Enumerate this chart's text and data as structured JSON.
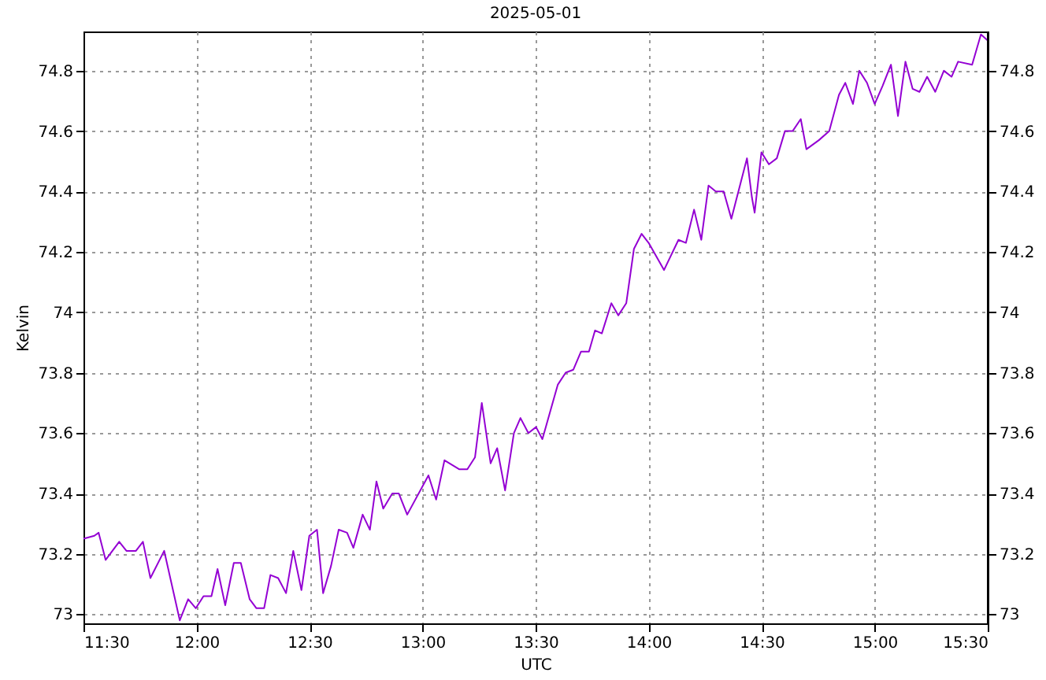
{
  "chart_data": {
    "type": "line",
    "title": "2025-05-01",
    "xlabel": "UTC",
    "ylabel": "Kelvin",
    "x": [
      11.5,
      11.548,
      11.567,
      11.598,
      11.658,
      11.69,
      11.732,
      11.763,
      11.796,
      11.857,
      11.926,
      11.963,
      11.997,
      12.031,
      12.066,
      12.093,
      12.127,
      12.165,
      12.196,
      12.235,
      12.265,
      12.299,
      12.327,
      12.361,
      12.396,
      12.428,
      12.464,
      12.499,
      12.533,
      12.56,
      12.595,
      12.629,
      12.666,
      12.694,
      12.735,
      12.767,
      12.796,
      12.826,
      12.866,
      12.895,
      12.932,
      13.026,
      13.06,
      13.097,
      13.163,
      13.198,
      13.232,
      13.262,
      13.301,
      13.33,
      13.365,
      13.404,
      13.433,
      13.468,
      13.502,
      13.53,
      13.598,
      13.633,
      13.667,
      13.701,
      13.736,
      13.763,
      13.793,
      13.835,
      13.866,
      13.901,
      13.935,
      13.969,
      14.0,
      14.068,
      14.132,
      14.165,
      14.201,
      14.233,
      14.265,
      14.297,
      14.332,
      14.366,
      14.435,
      14.457,
      14.469,
      14.499,
      14.532,
      14.567,
      14.603,
      14.637,
      14.673,
      14.698,
      14.753,
      14.799,
      14.842,
      14.87,
      14.904,
      14.932,
      14.966,
      15.0,
      15.035,
      15.072,
      15.103,
      15.136,
      15.168,
      15.198,
      15.232,
      15.268,
      15.306,
      15.34,
      15.369,
      15.431,
      15.47,
      15.5
    ],
    "series": [
      {
        "color": "#9400d3",
        "values": [
          73.25,
          73.26,
          73.27,
          73.18,
          73.24,
          73.21,
          73.21,
          73.24,
          73.12,
          73.21,
          72.98,
          73.05,
          73.02,
          73.06,
          73.06,
          73.15,
          73.03,
          73.17,
          73.17,
          73.05,
          73.02,
          73.02,
          73.13,
          73.12,
          73.07,
          73.21,
          73.08,
          73.26,
          73.28,
          73.07,
          73.16,
          73.28,
          73.27,
          73.22,
          73.33,
          73.28,
          73.44,
          73.35,
          73.4,
          73.4,
          73.33,
          73.46,
          73.38,
          73.51,
          73.48,
          73.48,
          73.52,
          73.7,
          73.5,
          73.55,
          73.41,
          73.6,
          73.65,
          73.6,
          73.62,
          73.58,
          73.76,
          73.8,
          73.81,
          73.87,
          73.87,
          73.94,
          73.93,
          74.03,
          73.99,
          74.03,
          74.21,
          74.26,
          74.23,
          74.14,
          74.24,
          74.23,
          74.34,
          74.24,
          74.42,
          74.4,
          74.4,
          74.31,
          74.51,
          74.38,
          74.33,
          74.53,
          74.49,
          74.51,
          74.6,
          74.6,
          74.64,
          74.54,
          74.57,
          74.6,
          74.72,
          74.76,
          74.69,
          74.8,
          74.76,
          74.69,
          74.75,
          74.82,
          74.65,
          74.83,
          74.74,
          74.73,
          74.78,
          74.73,
          74.8,
          74.78,
          74.83,
          74.82,
          74.92,
          74.9
        ]
      }
    ],
    "xlim": [
      11.5,
      15.5
    ],
    "xticks": [
      {
        "value": 11.5,
        "label": "11:30"
      },
      {
        "value": 12,
        "label": "12:00"
      },
      {
        "value": 12.5,
        "label": "12:30"
      },
      {
        "value": 13,
        "label": "13:00"
      },
      {
        "value": 13.5,
        "label": "13:30"
      },
      {
        "value": 14,
        "label": "14:00"
      },
      {
        "value": 14.5,
        "label": "14:30"
      },
      {
        "value": 15,
        "label": "15:00"
      },
      {
        "value": 15.5,
        "label": "15:30"
      }
    ],
    "ylim": [
      72.97,
      74.93
    ],
    "yticks": [
      73,
      73.2,
      73.4,
      73.6,
      73.8,
      74,
      74.2,
      74.4,
      74.6,
      74.8
    ],
    "y2lim": [
      72.97,
      74.93
    ],
    "y2ticks": [
      73,
      73.2,
      73.4,
      73.6,
      73.8,
      74,
      74.2,
      74.4,
      74.6,
      74.8
    ],
    "grid": true,
    "marker": "none",
    "line_style": "solid"
  }
}
